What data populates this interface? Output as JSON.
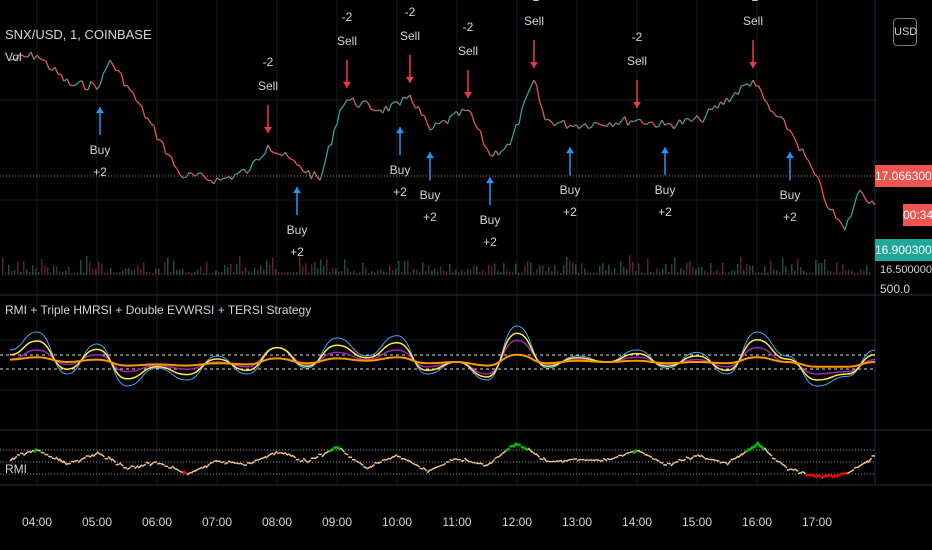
{
  "header": {
    "symbol": "SNX/USD, 1, COINBASE",
    "volume_label": "Vol",
    "currency_button": "USD"
  },
  "price_axis": {
    "last_price": "17.06630000",
    "countdown": "00:34",
    "bid_price": "16.90030000",
    "vol_label": "16.50000000",
    "vol_value": "500.0"
  },
  "indicator": {
    "title": "RMI + Triple HMRSI + Double EVWRSI + TERSI Strategy",
    "rmi_label": "RMI"
  },
  "colors": {
    "up": "#26a69a",
    "down": "#ef5350",
    "buy": "#2196f3",
    "sell": "#f23645",
    "last_tag": "#f05350",
    "bid_tag": "#1fa79a",
    "yellow": "#ffeb3b",
    "orange": "#ff9800",
    "purple": "#9c27b0",
    "blue": "#42a5f5",
    "rmi": "#f4c08f",
    "rmi_ob": "#00c000",
    "rmi_os": "#ff0000"
  },
  "chart_data": {
    "type": "line",
    "xlabel": "",
    "ylabel": "",
    "time_ticks": [
      "04:00",
      "05:00",
      "06:00",
      "07:00",
      "08:00",
      "09:00",
      "10:00",
      "11:00",
      "12:00",
      "13:00",
      "14:00",
      "15:00",
      "16:00",
      "17:00"
    ],
    "price": {
      "t": [
        "03:33",
        "04:00",
        "04:33",
        "05:03",
        "05:13",
        "05:33",
        "06:03",
        "06:23",
        "07:03",
        "07:33",
        "07:51",
        "08:20",
        "08:43",
        "09:03",
        "09:10",
        "09:43",
        "10:03",
        "10:13",
        "10:33",
        "11:11",
        "11:33",
        "11:53",
        "12:17",
        "12:28",
        "12:53",
        "14:00",
        "14:28",
        "15:03",
        "15:56",
        "16:13",
        "16:33",
        "16:58",
        "17:13",
        "17:28",
        "17:43",
        "17:58"
      ],
      "v": [
        17.326,
        17.337,
        17.27,
        17.27,
        17.326,
        17.259,
        17.147,
        17.069,
        17.057,
        17.08,
        17.136,
        17.091,
        17.057,
        17.214,
        17.237,
        17.214,
        17.225,
        17.248,
        17.169,
        17.214,
        17.113,
        17.136,
        17.281,
        17.192,
        17.18,
        17.192,
        17.18,
        17.192,
        17.281,
        17.214,
        17.169,
        17.069,
        16.99,
        16.945,
        17.035,
        17.001
      ]
    },
    "signals": [
      {
        "type": "buy",
        "time": "05:03",
        "label": "Buy",
        "qty": "+2"
      },
      {
        "type": "sell",
        "time": "07:51",
        "label": "Sell",
        "qty": "-2"
      },
      {
        "type": "buy",
        "time": "08:20",
        "label": "Buy",
        "qty": "+2"
      },
      {
        "type": "sell",
        "time": "09:10",
        "label": "Sell",
        "qty": "-2"
      },
      {
        "type": "buy",
        "time": "10:03",
        "label": "Buy",
        "qty": "+2"
      },
      {
        "type": "sell",
        "time": "10:13",
        "label": "Sell",
        "qty": "-2"
      },
      {
        "type": "buy",
        "time": "10:33",
        "label": "Buy",
        "qty": "+2"
      },
      {
        "type": "sell",
        "time": "11:11",
        "label": "Sell",
        "qty": "-2"
      },
      {
        "type": "buy",
        "time": "11:33",
        "label": "Buy",
        "qty": "+2"
      },
      {
        "type": "sell",
        "time": "12:17",
        "label": "Sell",
        "qty": "-2"
      },
      {
        "type": "buy",
        "time": "12:53",
        "label": "Buy",
        "qty": "+2"
      },
      {
        "type": "sell",
        "time": "14:00",
        "label": "Sell",
        "qty": "-2"
      },
      {
        "type": "buy",
        "time": "14:28",
        "label": "Buy",
        "qty": "+2"
      },
      {
        "type": "sell",
        "time": "15:56",
        "label": "Sell",
        "qty": "-2"
      },
      {
        "type": "buy",
        "time": "16:33",
        "label": "Buy",
        "qty": "+2"
      }
    ],
    "oscillator": {
      "t": [
        "03:33",
        "04:00",
        "04:30",
        "05:00",
        "05:30",
        "06:00",
        "06:30",
        "07:00",
        "07:30",
        "08:00",
        "08:30",
        "09:00",
        "09:30",
        "10:00",
        "10:30",
        "11:00",
        "11:30",
        "12:00",
        "12:30",
        "13:00",
        "13:30",
        "14:00",
        "14:30",
        "15:00",
        "15:30",
        "16:00",
        "16:30",
        "17:00",
        "17:30",
        "17:58"
      ],
      "fast": [
        60,
        75,
        40,
        65,
        30,
        45,
        35,
        55,
        40,
        62,
        45,
        70,
        55,
        72,
        40,
        50,
        35,
        80,
        45,
        55,
        50,
        60,
        45,
        58,
        40,
        75,
        55,
        30,
        38,
        60
      ],
      "mid": [
        52,
        60,
        48,
        56,
        42,
        47,
        44,
        50,
        46,
        62,
        48,
        58,
        52,
        60,
        46,
        50,
        40,
        68,
        48,
        52,
        50,
        54,
        48,
        52,
        46,
        62,
        50,
        40,
        42,
        52
      ],
      "slow": [
        52,
        54,
        50,
        52,
        47,
        48,
        47,
        49,
        48,
        53,
        49,
        53,
        51,
        54,
        49,
        50,
        47,
        56,
        49,
        51,
        50,
        51,
        49,
        50,
        49,
        54,
        50,
        46,
        46,
        50
      ]
    },
    "rmi": {
      "t": [
        "03:33",
        "04:00",
        "04:30",
        "05:00",
        "05:30",
        "06:00",
        "06:30",
        "07:00",
        "07:30",
        "08:00",
        "08:30",
        "09:00",
        "09:30",
        "10:00",
        "10:30",
        "11:00",
        "11:30",
        "12:00",
        "12:30",
        "13:00",
        "13:30",
        "14:00",
        "14:30",
        "15:00",
        "15:30",
        "16:00",
        "16:30",
        "17:00",
        "17:30",
        "17:58"
      ],
      "v": [
        55,
        72,
        45,
        65,
        40,
        50,
        30,
        52,
        45,
        68,
        50,
        75,
        40,
        62,
        35,
        55,
        45,
        82,
        50,
        55,
        52,
        70,
        45,
        60,
        48,
        80,
        40,
        25,
        30,
        60
      ],
      "overbought": 70,
      "oversold": 30
    }
  }
}
